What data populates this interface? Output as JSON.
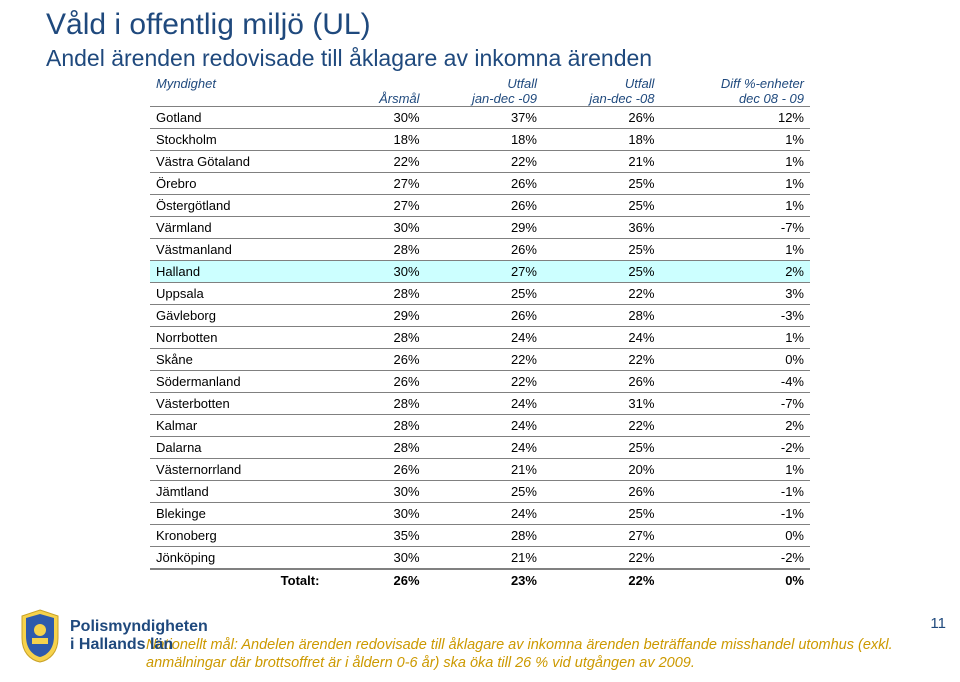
{
  "title": "Våld i offentlig miljö (UL)",
  "subtitle": "Andel ärenden redovisade till åklagare av inkomna ärenden",
  "pagenum": "11",
  "header": {
    "col_name_top": "Myndighet",
    "col_name_bottom": "",
    "arsmal_top": "",
    "arsmal_bottom": "Årsmål",
    "u09_top": "Utfall",
    "u09_bottom": "jan-dec -09",
    "u08_top": "Utfall",
    "u08_bottom": "jan-dec -08",
    "diff_top": "Diff %-enheter",
    "diff_bottom": "dec 08 - 09"
  },
  "highlight_row": "Halland",
  "total_label": "Totalt:",
  "total": {
    "arsmal": "26%",
    "u09": "23%",
    "u08": "22%",
    "diff": "0%"
  },
  "rows": [
    {
      "name": "Gotland",
      "arsmal": "30%",
      "u09": "37%",
      "u08": "26%",
      "diff": "12%"
    },
    {
      "name": "Stockholm",
      "arsmal": "18%",
      "u09": "18%",
      "u08": "18%",
      "diff": "1%"
    },
    {
      "name": "Västra Götaland",
      "arsmal": "22%",
      "u09": "22%",
      "u08": "21%",
      "diff": "1%"
    },
    {
      "name": "Örebro",
      "arsmal": "27%",
      "u09": "26%",
      "u08": "25%",
      "diff": "1%"
    },
    {
      "name": "Östergötland",
      "arsmal": "27%",
      "u09": "26%",
      "u08": "25%",
      "diff": "1%"
    },
    {
      "name": "Värmland",
      "arsmal": "30%",
      "u09": "29%",
      "u08": "36%",
      "diff": "-7%"
    },
    {
      "name": "Västmanland",
      "arsmal": "28%",
      "u09": "26%",
      "u08": "25%",
      "diff": "1%"
    },
    {
      "name": "Halland",
      "arsmal": "30%",
      "u09": "27%",
      "u08": "25%",
      "diff": "2%"
    },
    {
      "name": "Uppsala",
      "arsmal": "28%",
      "u09": "25%",
      "u08": "22%",
      "diff": "3%"
    },
    {
      "name": "Gävleborg",
      "arsmal": "29%",
      "u09": "26%",
      "u08": "28%",
      "diff": "-3%"
    },
    {
      "name": "Norrbotten",
      "arsmal": "28%",
      "u09": "24%",
      "u08": "24%",
      "diff": "1%"
    },
    {
      "name": "Skåne",
      "arsmal": "26%",
      "u09": "22%",
      "u08": "22%",
      "diff": "0%"
    },
    {
      "name": "Södermanland",
      "arsmal": "26%",
      "u09": "22%",
      "u08": "26%",
      "diff": "-4%"
    },
    {
      "name": "Västerbotten",
      "arsmal": "28%",
      "u09": "24%",
      "u08": "31%",
      "diff": "-7%"
    },
    {
      "name": "Kalmar",
      "arsmal": "28%",
      "u09": "24%",
      "u08": "22%",
      "diff": "2%"
    },
    {
      "name": "Dalarna",
      "arsmal": "28%",
      "u09": "24%",
      "u08": "25%",
      "diff": "-2%"
    },
    {
      "name": "Västernorrland",
      "arsmal": "26%",
      "u09": "21%",
      "u08": "20%",
      "diff": "1%"
    },
    {
      "name": "Jämtland",
      "arsmal": "30%",
      "u09": "25%",
      "u08": "26%",
      "diff": "-1%"
    },
    {
      "name": "Blekinge",
      "arsmal": "30%",
      "u09": "24%",
      "u08": "25%",
      "diff": "-1%"
    },
    {
      "name": "Kronoberg",
      "arsmal": "35%",
      "u09": "28%",
      "u08": "27%",
      "diff": "0%"
    },
    {
      "name": "Jönköping",
      "arsmal": "30%",
      "u09": "21%",
      "u08": "22%",
      "diff": "-2%"
    }
  ],
  "footnote": "Nationellt mål: Andelen ärenden redovisade till åklagare av inkomna ärenden beträffande misshandel utomhus (exkl. anmälningar där brottsoffret är i åldern 0-6 år) ska öka till 26 % vid utgången av 2009.",
  "logo": {
    "line1": "Polismyndigheten",
    "line2": "i Hallands län"
  },
  "colors": {
    "title": "#1f497d",
    "highlight_bg": "#ccffff",
    "footnote": "#cc9900",
    "rule": "#808080"
  }
}
